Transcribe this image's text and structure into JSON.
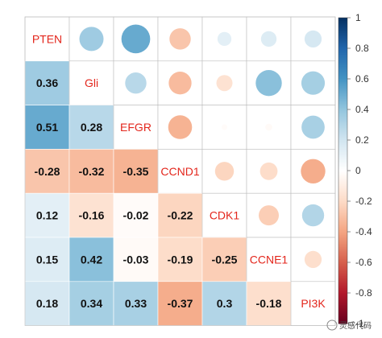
{
  "chart_data": {
    "type": "heatmap",
    "variables": [
      "PTEN",
      "Gli",
      "EFGR",
      "CCND1",
      "CDK1",
      "CCNE1",
      "PI3K"
    ],
    "matrix": [
      [
        1,
        0.36,
        0.51,
        -0.28,
        0.12,
        0.15,
        0.18
      ],
      [
        0.36,
        1,
        0.28,
        -0.32,
        -0.16,
        0.42,
        0.34
      ],
      [
        0.51,
        0.28,
        1,
        -0.35,
        -0.02,
        -0.03,
        0.33
      ],
      [
        -0.28,
        -0.32,
        -0.35,
        1,
        -0.22,
        -0.19,
        -0.37
      ],
      [
        0.12,
        -0.16,
        -0.02,
        -0.22,
        1,
        -0.25,
        0.3
      ],
      [
        0.15,
        0.42,
        -0.03,
        -0.19,
        -0.25,
        1,
        -0.18
      ],
      [
        0.18,
        0.34,
        0.33,
        -0.37,
        0.3,
        -0.18,
        1
      ]
    ],
    "lower_labels": [
      [
        "0.36"
      ],
      [
        "0.51",
        "0.28"
      ],
      [
        "-0.28",
        "-0.32",
        "-0.35"
      ],
      [
        "0.12",
        "-0.16",
        "-0.02",
        "-0.22"
      ],
      [
        "0.15",
        "0.42",
        "-0.03",
        "-0.19",
        "-0.25"
      ],
      [
        "0.18",
        "0.34",
        "0.33",
        "-0.37",
        "0.3",
        "-0.18"
      ]
    ],
    "lower_method": "color-number",
    "upper_method": "circle",
    "diagonal": "variable-names",
    "colorbar": {
      "range": [
        -1,
        1
      ],
      "ticks": [
        "1",
        "0.8",
        "0.6",
        "0.4",
        "0.2",
        "0",
        "-0.2",
        "-0.4",
        "-0.6",
        "-0.8",
        "-1"
      ],
      "low_color": "#67001f",
      "mid_color": "#ffffff",
      "high_color": "#053061"
    },
    "label_color": "#e3261c"
  },
  "watermark": "灵感代码"
}
